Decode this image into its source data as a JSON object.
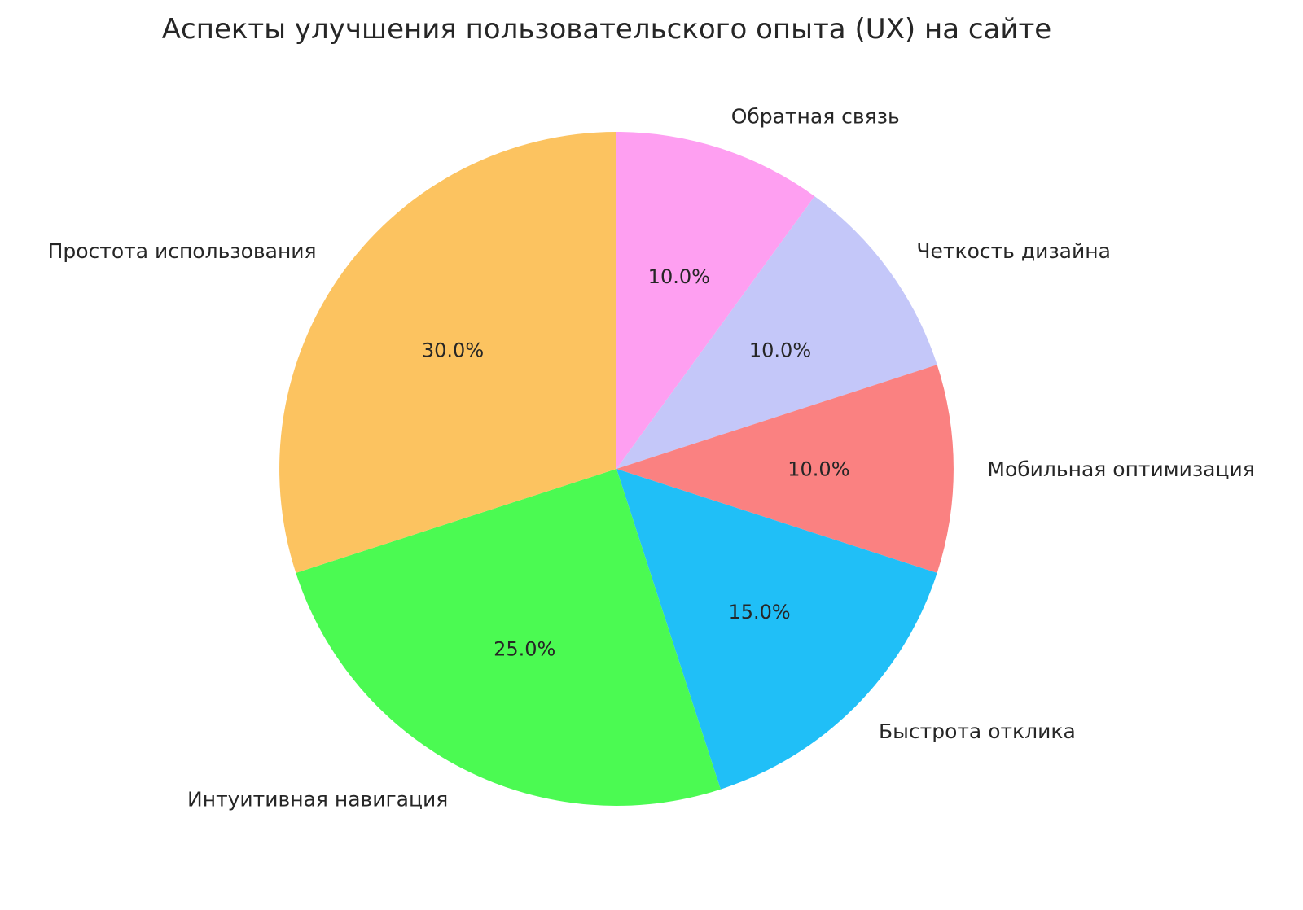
{
  "chart_data": {
    "type": "pie",
    "title": "Аспекты улучшения пользовательского опыта (UX) на сайте",
    "slices": [
      {
        "label": "Обратная связь",
        "value": 10.0,
        "pct_label": "10.0%",
        "color": "#FE9FF1"
      },
      {
        "label": "Четкость дизайна",
        "value": 10.0,
        "pct_label": "10.0%",
        "color": "#C4C7F9"
      },
      {
        "label": "Мобильная оптимизация",
        "value": 10.0,
        "pct_label": "10.0%",
        "color": "#FA8181"
      },
      {
        "label": "Быстрота отклика",
        "value": 15.0,
        "pct_label": "15.0%",
        "color": "#20BFF7"
      },
      {
        "label": "Интуитивная навигация",
        "value": 25.0,
        "pct_label": "25.0%",
        "color": "#4BFA52"
      },
      {
        "label": "Простота использования",
        "value": 30.0,
        "pct_label": "30.0%",
        "color": "#FCC360"
      }
    ],
    "start_angle": 90,
    "direction": "clockwise",
    "label_distance": 1.1,
    "pct_distance": 0.6,
    "title_color": "#262626",
    "text_color": "#262626",
    "background": "#FFFFFF"
  }
}
